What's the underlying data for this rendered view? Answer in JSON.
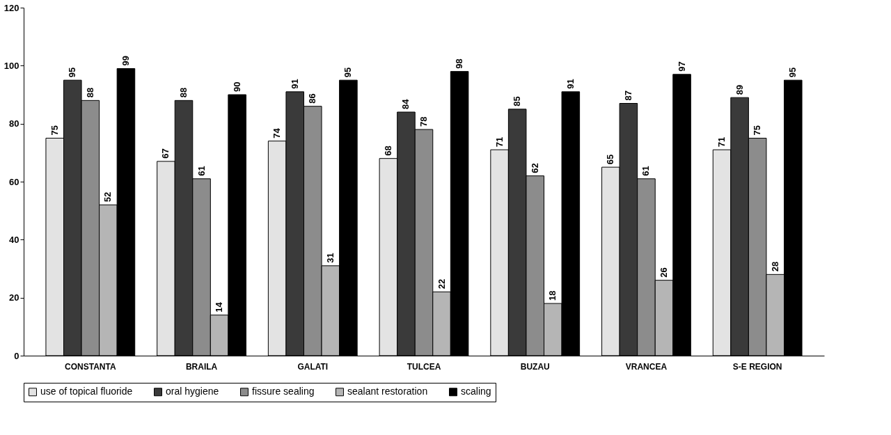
{
  "chart_data": {
    "type": "bar",
    "categories": [
      "CONSTANTA",
      "BRAILA",
      "GALATI",
      "TULCEA",
      "BUZAU",
      "VRANCEA",
      "S-E REGION"
    ],
    "series": [
      {
        "name": "use of topical fluoride",
        "color": "#e3e3e3",
        "values": [
          75,
          67,
          74,
          68,
          71,
          65,
          71
        ]
      },
      {
        "name": "oral hygiene",
        "color": "#3a3a3a",
        "values": [
          95,
          88,
          91,
          84,
          85,
          87,
          89
        ]
      },
      {
        "name": "fissure sealing",
        "color": "#8c8c8c",
        "values": [
          88,
          61,
          86,
          78,
          62,
          61,
          75
        ]
      },
      {
        "name": "sealant restoration",
        "color": "#b5b5b5",
        "values": [
          52,
          14,
          31,
          22,
          18,
          26,
          28
        ]
      },
      {
        "name": "scaling",
        "color": "#000000",
        "values": [
          99,
          90,
          95,
          98,
          91,
          97,
          95
        ]
      }
    ],
    "ylim": [
      0,
      120
    ],
    "yticks": [
      0,
      20,
      40,
      60,
      80,
      100,
      120
    ],
    "grid": false,
    "legend": "bottom",
    "data_labels": true
  }
}
